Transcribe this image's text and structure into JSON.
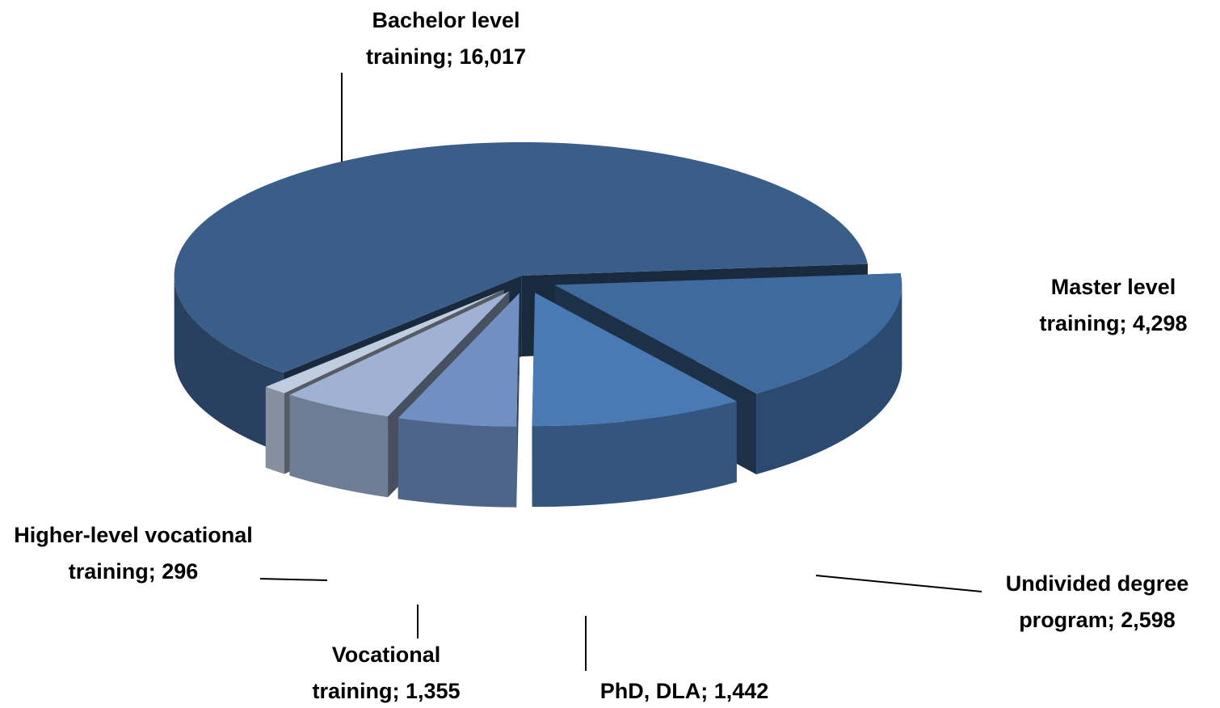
{
  "chart_data": {
    "type": "pie3d",
    "categories": [
      "Master level training",
      "Undivided degree program",
      "PhD, DLA",
      "Vocational training",
      "Higher-level vocational training",
      "Bachelor level training"
    ],
    "values": [
      4298,
      2598,
      1442,
      1355,
      296,
      16017
    ],
    "value_labels": [
      "4,298",
      "2,598",
      "1,442",
      "1,355",
      "296",
      "16,017"
    ],
    "label_separator": "; ",
    "colors": [
      "#3f6a9e",
      "#4a7ab4",
      "#7090c4",
      "#9fb2d4",
      "#c0cce0",
      "#3a5d8a"
    ]
  }
}
